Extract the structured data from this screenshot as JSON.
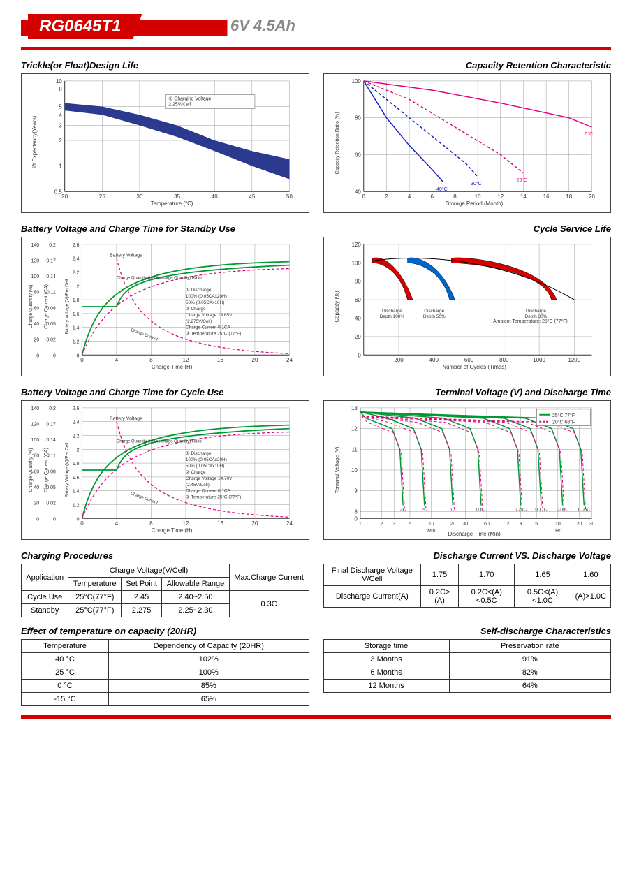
{
  "header": {
    "model": "RG0645T1",
    "spec": "6V  4.5Ah"
  },
  "charts": {
    "trickle": {
      "title": "Trickle(or Float)Design Life",
      "xlabel": "Temperature (°C)",
      "ylabel": "Lift Expectancy(Years)",
      "xticks": [
        20,
        25,
        30,
        35,
        40,
        45,
        50
      ],
      "yticks": [
        0.5,
        1,
        2,
        3,
        4,
        5,
        8,
        10
      ],
      "legend": "① Charging Voltage 2.25V/Cell",
      "band_color": "#2b3a8f",
      "band_upper": [
        [
          20,
          5.5
        ],
        [
          25,
          5
        ],
        [
          30,
          4
        ],
        [
          35,
          3
        ],
        [
          40,
          2
        ],
        [
          45,
          1.5
        ],
        [
          50,
          1.2
        ]
      ],
      "band_lower": [
        [
          20,
          4.5
        ],
        [
          25,
          4
        ],
        [
          30,
          3
        ],
        [
          35,
          2.2
        ],
        [
          40,
          1.5
        ],
        [
          45,
          1
        ],
        [
          50,
          0.7
        ]
      ]
    },
    "retention": {
      "title": "Capacity Retention Characteristic",
      "xlabel": "Storage Period (Month)",
      "ylabel": "Capacity Retention Ratio (%)",
      "xticks": [
        0,
        2,
        4,
        6,
        8,
        10,
        12,
        14,
        16,
        18,
        20
      ],
      "yticks": [
        40,
        60,
        80,
        100
      ],
      "curves": [
        {
          "label": "40°C (104°F)",
          "color": "#1020c0",
          "dash": false,
          "pts": [
            [
              0,
              100
            ],
            [
              2,
              80
            ],
            [
              4,
              65
            ],
            [
              6,
              52
            ],
            [
              7,
              45
            ]
          ]
        },
        {
          "label": "30°C (86°F)",
          "color": "#1020c0",
          "dash": true,
          "pts": [
            [
              0,
              100
            ],
            [
              3,
              85
            ],
            [
              6,
              70
            ],
            [
              9,
              55
            ],
            [
              10,
              48
            ]
          ]
        },
        {
          "label": "25°C (77°F)",
          "color": "#e4007f",
          "dash": true,
          "pts": [
            [
              0,
              100
            ],
            [
              4,
              90
            ],
            [
              8,
              75
            ],
            [
              12,
              60
            ],
            [
              14,
              50
            ]
          ]
        },
        {
          "label": "5°C (41°F)",
          "color": "#e4007f",
          "dash": false,
          "pts": [
            [
              0,
              100
            ],
            [
              6,
              95
            ],
            [
              12,
              88
            ],
            [
              18,
              80
            ],
            [
              20,
              75
            ]
          ]
        }
      ]
    },
    "standby": {
      "title": "Battery Voltage and Charge Time for Standby Use",
      "xlabel": "Charge Time (H)",
      "ylabel1": "Charge Quantity (%)",
      "ylabel2": "Charge Current (CA)",
      "ylabel3": "Battery Voltage (V)/Per Cell",
      "legend_lines": [
        "① Discharge",
        "100% (0.05CAx20H)",
        "50% (0.05CAx10H)",
        "② Charge",
        "Charge Voltage 13.65V",
        "(2.275V/Cell)",
        "Charge Current 0.1CA",
        "③ Temperature 25°C (77°F)"
      ],
      "colors": {
        "voltage": "#009933",
        "quantity": "#e4007f",
        "current": "#009933"
      }
    },
    "cycle_life": {
      "title": "Cycle Service Life",
      "xlabel": "Number of Cycles (Times)",
      "ylabel": "Capacity (%)",
      "xticks": [
        200,
        400,
        600,
        800,
        1000,
        1200
      ],
      "yticks": [
        0,
        20,
        40,
        60,
        80,
        100,
        120
      ],
      "note": "Ambient Temperature: 25°C (77°F)",
      "regions": [
        {
          "label": "Discharge Depth 100%",
          "color": "#d50000",
          "x_end": 280
        },
        {
          "label": "Discharge Depth 50%",
          "color": "#0066cc",
          "x_end": 520
        },
        {
          "label": "Discharge Depth 30%",
          "color": "#d50000",
          "x_end": 1100
        }
      ]
    },
    "cycle_use": {
      "title": "Battery Voltage and Charge Time for Cycle Use",
      "xlabel": "Charge Time (H)",
      "legend_lines": [
        "① Discharge",
        "100% (0.05CAx20H)",
        "50% (0.05CAx10H)",
        "② Charge",
        "Charge Voltage 14.70V",
        "(2.45V/Cell)",
        "Charge Current 0.1CA",
        "③ Temperature 25°C (77°F)"
      ]
    },
    "terminal": {
      "title": "Terminal Voltage (V) and Discharge Time",
      "ylabel": "Terminal Voltage (V)",
      "xlabel": "Discharge Time (Min)",
      "yticks": [
        0,
        8,
        9,
        10,
        11,
        12,
        13
      ],
      "legend": [
        {
          "label": "25°C 77°F",
          "color": "#009933"
        },
        {
          "label": "20°C 68°F",
          "color": "#e4007f"
        }
      ],
      "rates": [
        "3C",
        "2C",
        "1C",
        "0.6C",
        "0.25C",
        "0.17C",
        "0.09C",
        "0.05C"
      ]
    }
  },
  "tables": {
    "charging": {
      "title": "Charging Procedures",
      "headers": {
        "app": "Application",
        "cv": "Charge Voltage(V/Cell)",
        "temp": "Temperature",
        "sp": "Set Point",
        "ar": "Allowable Range",
        "max": "Max.Charge Current"
      },
      "rows": [
        {
          "app": "Cycle Use",
          "temp": "25°C(77°F)",
          "sp": "2.45",
          "ar": "2.40~2.50"
        },
        {
          "app": "Standby",
          "temp": "25°C(77°F)",
          "sp": "2.275",
          "ar": "2.25~2.30"
        }
      ],
      "max_current": "0.3C"
    },
    "discharge_v": {
      "title": "Discharge Current VS. Discharge Voltage",
      "h1": "Final Discharge Voltage V/Cell",
      "h2": "Discharge Current(A)",
      "cols": [
        "1.75",
        "1.70",
        "1.65",
        "1.60"
      ],
      "vals": [
        "0.2C>(A)",
        "0.2C<(A)<0.5C",
        "0.5C<(A)<1.0C",
        "(A)>1.0C"
      ]
    },
    "temp_effect": {
      "title": "Effect of temperature on capacity (20HR)",
      "h1": "Temperature",
      "h2": "Dependency of Capacity (20HR)",
      "rows": [
        [
          "40 °C",
          "102%"
        ],
        [
          "25 °C",
          "100%"
        ],
        [
          "0 °C",
          "85%"
        ],
        [
          "-15 °C",
          "65%"
        ]
      ]
    },
    "self_discharge": {
      "title": "Self-discharge Characteristics",
      "h1": "Storage time",
      "h2": "Preservation rate",
      "rows": [
        [
          "3 Months",
          "91%"
        ],
        [
          "6 Months",
          "82%"
        ],
        [
          "12 Months",
          "64%"
        ]
      ]
    }
  }
}
